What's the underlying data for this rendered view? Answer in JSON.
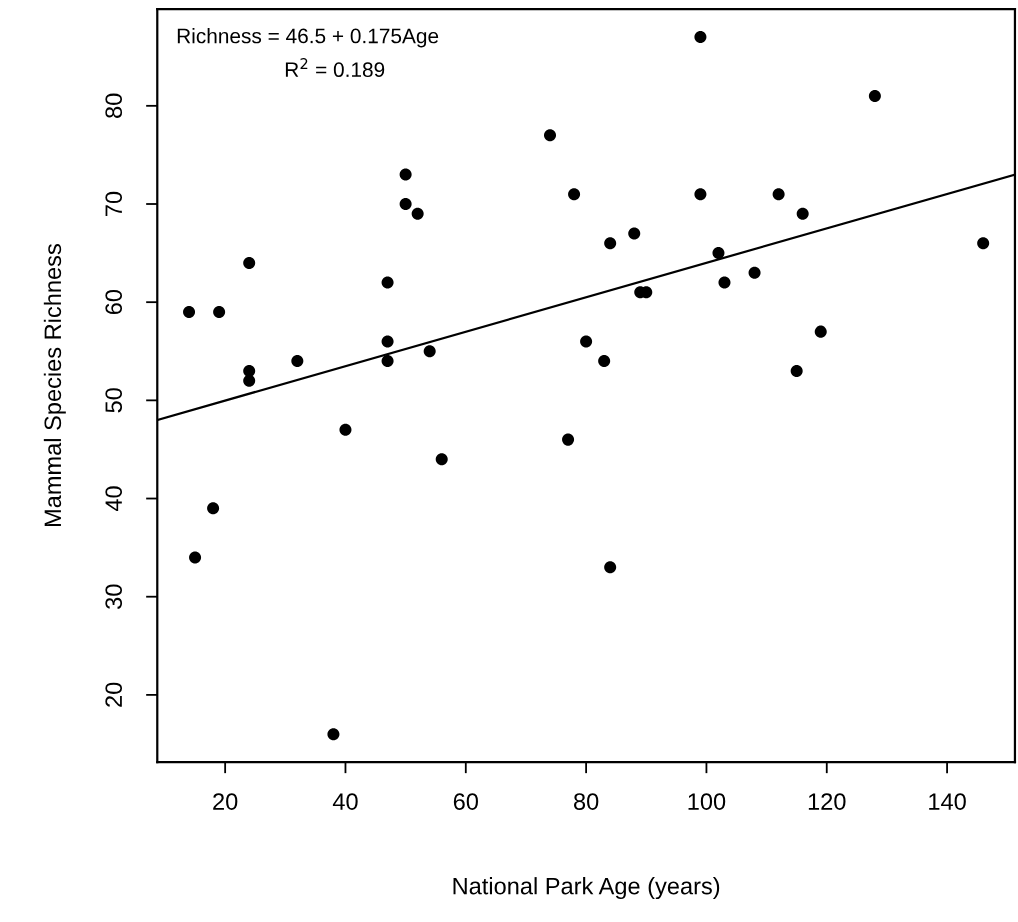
{
  "chart_data": {
    "type": "scatter",
    "xlabel": "National Park Age (years)",
    "ylabel": "Mammal Species Richness",
    "annotations": [
      "Richness = 46.5 + 0.175Age",
      "R$^{2}$ = 0.189"
    ],
    "xlim": [
      8.72,
      151.28
    ],
    "ylim": [
      13.16,
      89.84
    ],
    "xticks": [
      20,
      40,
      60,
      80,
      100,
      120,
      140
    ],
    "yticks": [
      20,
      30,
      40,
      50,
      60,
      70,
      80
    ],
    "grid": false,
    "legend": false,
    "series": [
      {
        "marker": "circle",
        "color": "#000000",
        "x": [
          14,
          15,
          18,
          19,
          24,
          24,
          24,
          32,
          38,
          40,
          47,
          47,
          47,
          50,
          50,
          52,
          54,
          56,
          74,
          77,
          78,
          80,
          83,
          84,
          84,
          88,
          89,
          90,
          99,
          99,
          102,
          103,
          108,
          112,
          115,
          116,
          119,
          128,
          146
        ],
        "values": [
          59,
          34,
          39,
          59,
          64,
          53,
          52,
          54,
          16,
          47,
          62,
          56,
          54,
          73,
          70,
          69,
          55,
          44,
          77,
          46,
          71,
          56,
          54,
          66,
          33,
          67,
          61,
          61,
          87,
          71,
          65,
          62,
          63,
          71,
          53,
          69,
          57,
          81,
          66
        ]
      },
      {
        "type": "line",
        "color": "#000000",
        "x": [
          8.72,
          151.28
        ],
        "values": [
          48.0,
          73.0
        ]
      }
    ]
  }
}
